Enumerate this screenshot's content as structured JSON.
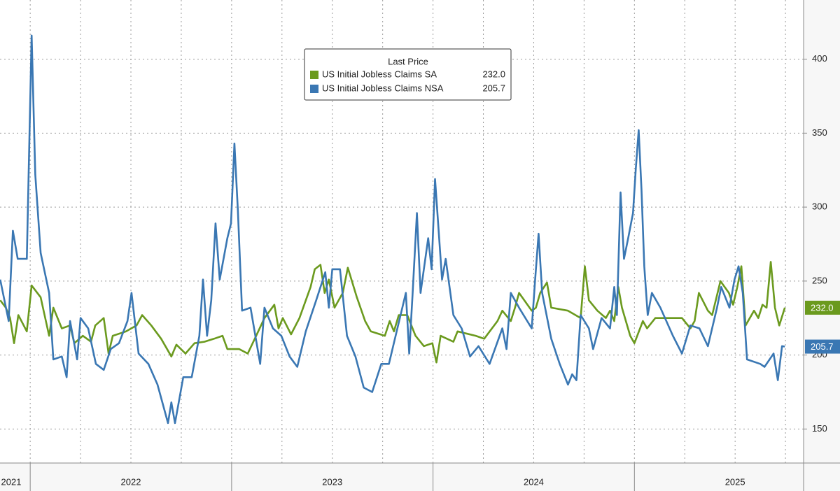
{
  "chart_data": {
    "type": "line",
    "legend_title": "Last Price",
    "xlim": [
      2021.85,
      2025.84
    ],
    "ylim": [
      127,
      440
    ],
    "xticks": [
      2021,
      2022,
      2023,
      2024,
      2025
    ],
    "yticks": [
      150,
      200,
      250,
      300,
      350,
      400
    ],
    "grid": true,
    "series": [
      {
        "name": "US Initial Jobless Claims SA",
        "color": "#6b9a1e",
        "last_value_label": "232.0",
        "x": [
          2021.851,
          2021.879,
          2021.9,
          2021.92,
          2021.941,
          2021.983,
          2022.007,
          2022.052,
          2022.094,
          2022.115,
          2022.157,
          2022.198,
          2022.219,
          2022.261,
          2022.302,
          2022.323,
          2022.365,
          2022.389,
          2022.41,
          2022.476,
          2022.528,
          2022.556,
          2022.601,
          2022.65,
          2022.701,
          2022.726,
          2022.771,
          2022.816,
          2022.865,
          2022.913,
          2022.955,
          2022.979,
          2023.038,
          2023.08,
          2023.122,
          2023.163,
          2023.212,
          2023.233,
          2023.254,
          2023.295,
          2023.337,
          2023.392,
          2023.413,
          2023.441,
          2023.462,
          2023.483,
          2023.511,
          2023.552,
          2023.577,
          2023.622,
          2023.663,
          2023.691,
          2023.761,
          2023.785,
          2023.806,
          2023.83,
          2023.872,
          2023.913,
          2023.955,
          2023.997,
          2024.017,
          2024.038,
          2024.101,
          2024.122,
          2024.212,
          2024.254,
          2024.32,
          2024.344,
          2024.386,
          2024.407,
          2024.427,
          2024.49,
          2024.511,
          2024.532,
          2024.566,
          2024.587,
          2024.67,
          2024.733,
          2024.754,
          2024.774,
          2024.816,
          2024.858,
          2024.879,
          2024.9,
          2024.92,
          2024.938,
          2024.979,
          2025.0,
          2025.042,
          2025.063,
          2025.104,
          2025.191,
          2025.236,
          2025.278,
          2025.299,
          2025.32,
          2025.365,
          2025.386,
          2025.427,
          2025.469,
          2025.49,
          2025.511,
          2025.531,
          2025.552,
          2025.594,
          2025.615,
          2025.636,
          2025.656,
          2025.677,
          2025.698,
          2025.719,
          2025.747
        ],
        "values": [
          237,
          232,
          225,
          208,
          227,
          216,
          247,
          239,
          213,
          232,
          218,
          220,
          208,
          213,
          209,
          220,
          225,
          201,
          213,
          216,
          220,
          227,
          220,
          211,
          199,
          207,
          201,
          208,
          209,
          211,
          213,
          204,
          204,
          201,
          213,
          225,
          234,
          218,
          225,
          214,
          225,
          246,
          258,
          261,
          242,
          251,
          232,
          242,
          259,
          239,
          223,
          216,
          213,
          223,
          216,
          227,
          227,
          213,
          206,
          208,
          195,
          213,
          209,
          216,
          213,
          211,
          223,
          230,
          223,
          232,
          242,
          230,
          232,
          242,
          249,
          232,
          230,
          225,
          260,
          237,
          230,
          225,
          230,
          223,
          246,
          232,
          213,
          208,
          223,
          218,
          225,
          225,
          225,
          218,
          223,
          242,
          230,
          227,
          250,
          242,
          234,
          246,
          260,
          220,
          230,
          225,
          234,
          232,
          263,
          232,
          220,
          232.0
        ]
      },
      {
        "name": "US Initial Jobless Claims NSA",
        "color": "#3a77b3",
        "last_value_label": "205.7",
        "x": [
          2021.851,
          2021.893,
          2021.914,
          2021.938,
          2021.983,
          2022.007,
          2022.025,
          2022.052,
          2022.094,
          2022.115,
          2022.157,
          2022.181,
          2022.198,
          2022.233,
          2022.25,
          2022.288,
          2022.326,
          2022.365,
          2022.4,
          2022.441,
          2022.483,
          2022.503,
          2022.538,
          2022.587,
          2022.632,
          2022.684,
          2022.701,
          2022.719,
          2022.76,
          2022.802,
          2022.84,
          2022.858,
          2022.878,
          2022.899,
          2022.92,
          2022.941,
          2022.979,
          2022.997,
          2023.014,
          2023.031,
          2023.052,
          2023.094,
          2023.142,
          2023.163,
          2023.205,
          2023.247,
          2023.288,
          2023.326,
          2023.368,
          2023.42,
          2023.465,
          2023.483,
          2023.5,
          2023.538,
          2023.573,
          2023.615,
          2023.656,
          2023.698,
          2023.743,
          2023.781,
          2023.823,
          2023.865,
          2023.882,
          2023.899,
          2023.92,
          2023.938,
          2023.976,
          2023.993,
          2024.01,
          2024.045,
          2024.063,
          2024.101,
          2024.142,
          2024.184,
          2024.226,
          2024.281,
          2024.344,
          2024.365,
          2024.386,
          2024.427,
          2024.49,
          2024.507,
          2024.524,
          2024.542,
          2024.587,
          2024.629,
          2024.67,
          2024.691,
          2024.712,
          2024.733,
          2024.774,
          2024.795,
          2024.837,
          2024.879,
          2024.9,
          2024.913,
          2024.931,
          2024.948,
          2024.969,
          2024.993,
          2025.007,
          2025.021,
          2025.035,
          2025.049,
          2025.066,
          2025.087,
          2025.129,
          2025.191,
          2025.236,
          2025.278,
          2025.323,
          2025.365,
          2025.41,
          2025.431,
          2025.472,
          2025.497,
          2025.517,
          2025.538,
          2025.559,
          2025.625,
          2025.646,
          2025.691,
          2025.712,
          2025.733,
          2025.747
        ],
        "values": [
          251,
          223,
          284,
          265,
          265,
          416,
          322,
          269,
          242,
          197,
          199,
          185,
          223,
          197,
          225,
          218,
          194,
          190,
          204,
          208,
          223,
          242,
          201,
          194,
          180,
          154,
          168,
          154,
          185,
          185,
          213,
          251,
          213,
          237,
          289,
          251,
          279,
          289,
          343,
          298,
          230,
          232,
          194,
          232,
          218,
          213,
          199,
          192,
          216,
          237,
          256,
          232,
          258,
          258,
          213,
          199,
          178,
          175,
          194,
          194,
          218,
          242,
          201,
          242,
          296,
          242,
          279,
          258,
          319,
          251,
          265,
          227,
          218,
          199,
          206,
          194,
          218,
          204,
          242,
          232,
          218,
          251,
          282,
          242,
          211,
          194,
          180,
          187,
          183,
          227,
          218,
          204,
          225,
          218,
          246,
          227,
          310,
          265,
          279,
          296,
          326,
          352,
          312,
          260,
          227,
          242,
          232,
          213,
          201,
          220,
          218,
          206,
          232,
          246,
          232,
          251,
          260,
          242,
          197,
          194,
          192,
          201,
          183,
          206,
          205.7
        ]
      }
    ]
  }
}
